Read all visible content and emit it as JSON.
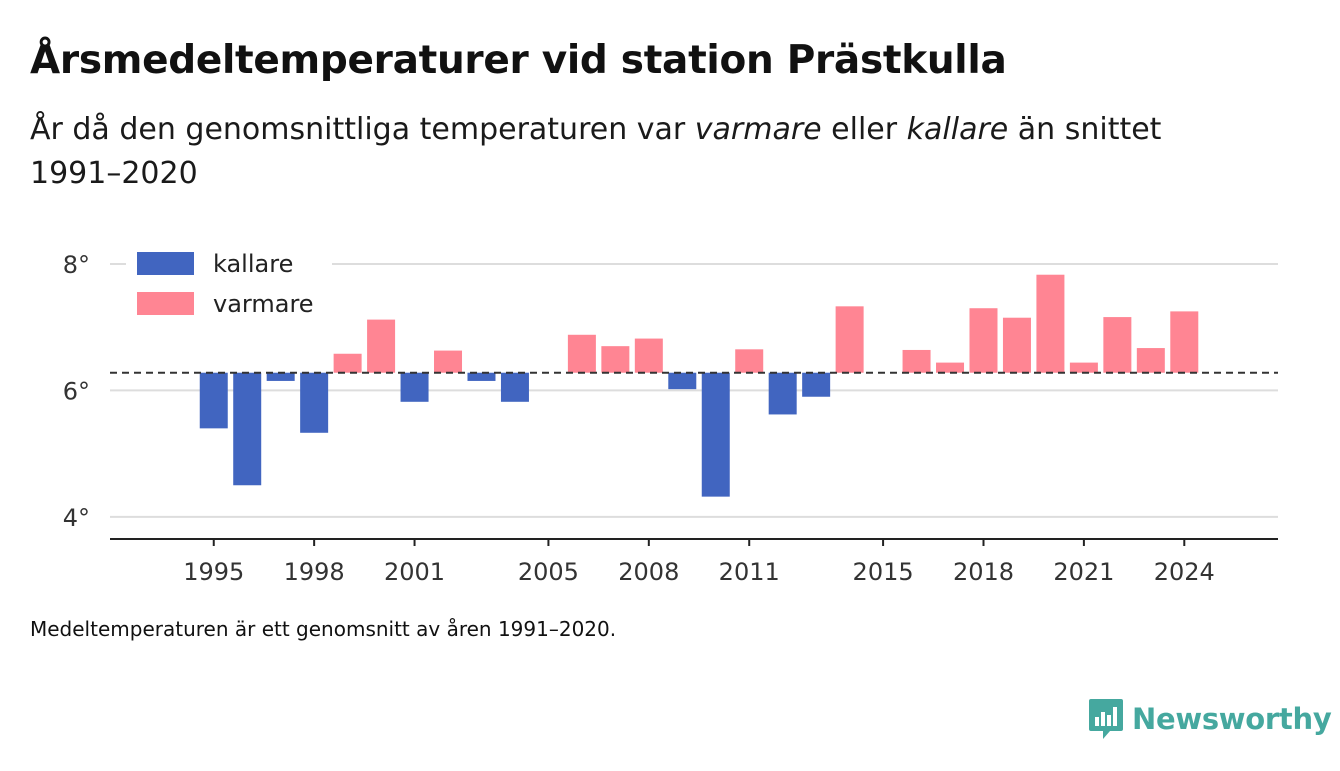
{
  "title": "Årsmedeltemperaturer vid station Prästkulla",
  "subtitle": {
    "part1": "År då den genomsnittliga temperaturen var ",
    "warmer_word": "varmare",
    "part2": " eller ",
    "colder_word": "kallare",
    "part3": " än snittet 1991–2020"
  },
  "note": "Medeltemperaturen är ett genomsnitt av åren 1991–2020.",
  "brand": "Newsworthy",
  "colors": {
    "colder": "#4165c0",
    "warmer": "#ff8593",
    "brand": "#45a89f",
    "grid": "#dddddd"
  },
  "chart_data": {
    "type": "bar",
    "baseline": 6.28,
    "ylim": [
      3.65,
      8.3
    ],
    "yticks": [
      4,
      6,
      8
    ],
    "ytick_labels": [
      "4°",
      "6°",
      "8°"
    ],
    "xlim": [
      1991.9,
      2026.8
    ],
    "xticks": [
      1995,
      1998,
      2001,
      2005,
      2008,
      2011,
      2015,
      2018,
      2021,
      2024
    ],
    "legend": [
      {
        "name": "kallare",
        "color_key": "colder"
      },
      {
        "name": "varmare",
        "color_key": "warmer"
      }
    ],
    "x": [
      1995,
      1996,
      1997,
      1998,
      1999,
      2000,
      2001,
      2002,
      2003,
      2004,
      2006,
      2007,
      2008,
      2009,
      2010,
      2011,
      2012,
      2013,
      2014,
      2016,
      2017,
      2018,
      2019,
      2020,
      2021,
      2022,
      2023,
      2024
    ],
    "values": [
      5.4,
      4.5,
      6.15,
      5.33,
      6.58,
      7.12,
      5.82,
      6.63,
      6.15,
      5.82,
      6.88,
      6.7,
      6.82,
      6.02,
      4.32,
      6.65,
      5.62,
      5.9,
      7.33,
      6.64,
      6.44,
      7.3,
      7.15,
      7.83,
      6.44,
      7.16,
      6.67,
      7.25
    ]
  }
}
